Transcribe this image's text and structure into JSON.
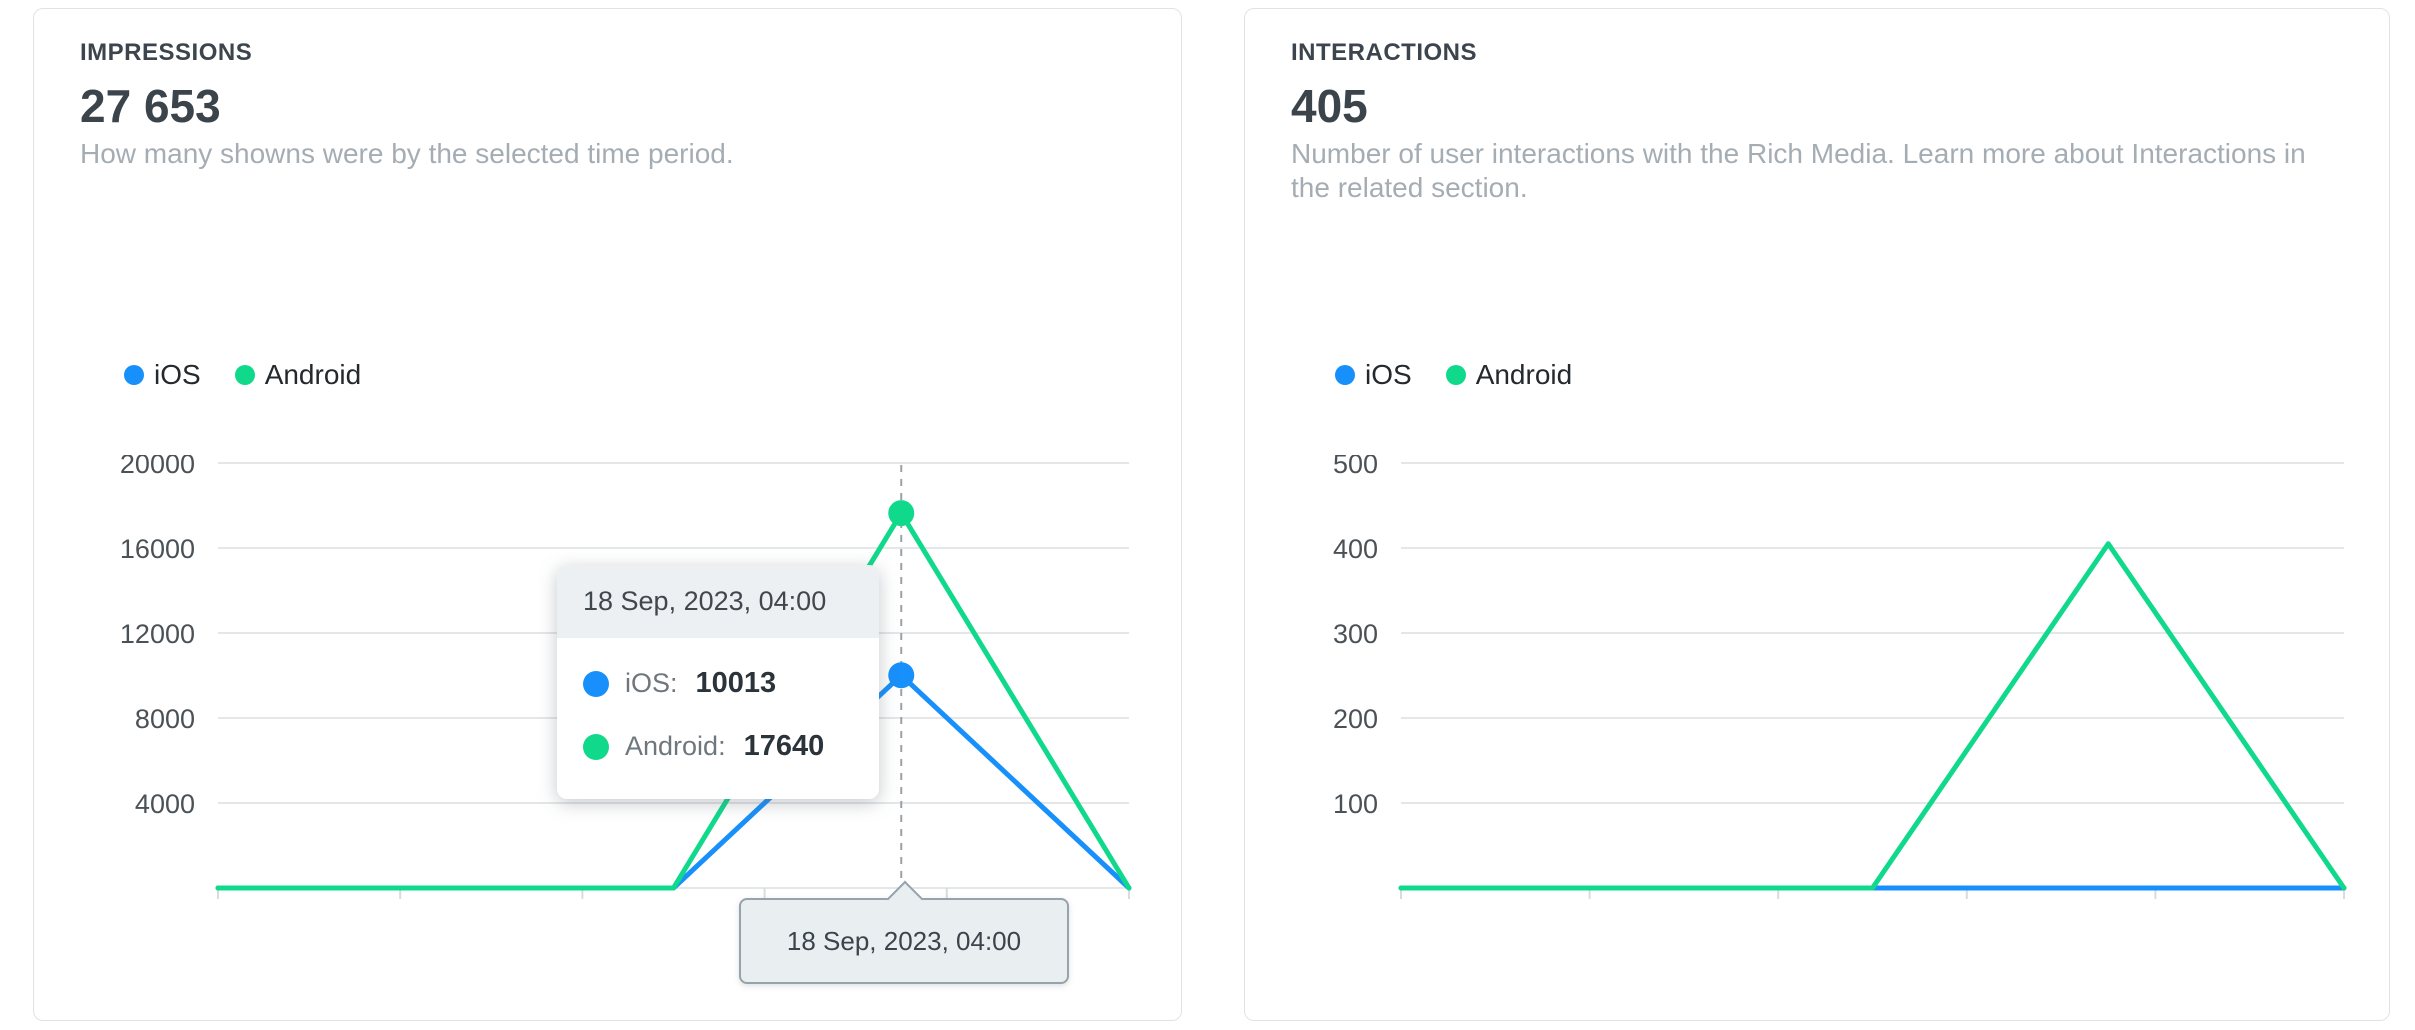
{
  "colors": {
    "ios": "#1890fb",
    "android": "#10d98c",
    "grid": "#e4e6e8",
    "tick": "#d9dcdf",
    "dashed": "#9aa1a7"
  },
  "cards": [
    {
      "title": "IMPRESSIONS",
      "value": "27 653",
      "description": "How many showns were by the selected time period.",
      "legend": [
        {
          "label": "iOS",
          "color": "#1890fb"
        },
        {
          "label": "Android",
          "color": "#10d98c"
        }
      ],
      "tooltip": {
        "header": "18 Sep, 2023, 04:00",
        "rows": [
          {
            "label": "iOS:",
            "value": "10013",
            "color": "#1890fb"
          },
          {
            "label": "Android:",
            "value": "17640",
            "color": "#10d98c"
          }
        ]
      },
      "axis_label": "18 Sep, 2023, 04:00"
    },
    {
      "title": "INTERACTIONS",
      "value": "405",
      "description": "Number of user interactions with the Rich Media. Learn more about Interactions in the related section.",
      "legend": [
        {
          "label": "iOS",
          "color": "#1890fb"
        },
        {
          "label": "Android",
          "color": "#10d98c"
        }
      ]
    }
  ],
  "chart_data": [
    {
      "type": "line",
      "title": "IMPRESSIONS",
      "x": [
        0,
        1,
        2,
        3,
        4
      ],
      "series": [
        {
          "name": "iOS",
          "color": "#1890fb",
          "values": [
            0,
            0,
            0,
            10013,
            0
          ]
        },
        {
          "name": "Android",
          "color": "#10d98c",
          "values": [
            0,
            0,
            0,
            17640,
            0
          ]
        }
      ],
      "ylim": [
        0,
        20000
      ],
      "yticks": [
        4000,
        8000,
        12000,
        16000,
        20000
      ],
      "x_tick_count": 6,
      "grid": "horizontal",
      "legend_position": "top-left",
      "hover": {
        "index": 3,
        "label": "18 Sep, 2023, 04:00",
        "iOS": 10013,
        "Android": 17640
      }
    },
    {
      "type": "line",
      "title": "INTERACTIONS",
      "x": [
        0,
        1,
        2,
        3,
        4
      ],
      "series": [
        {
          "name": "iOS",
          "color": "#1890fb",
          "values": [
            0,
            0,
            0,
            0,
            0
          ]
        },
        {
          "name": "Android",
          "color": "#10d98c",
          "values": [
            0,
            0,
            0,
            405,
            0
          ]
        }
      ],
      "ylim": [
        0,
        500
      ],
      "yticks": [
        100,
        200,
        300,
        400,
        500
      ],
      "x_tick_count": 6,
      "grid": "horizontal",
      "legend_position": "top-left",
      "hover": null
    }
  ]
}
